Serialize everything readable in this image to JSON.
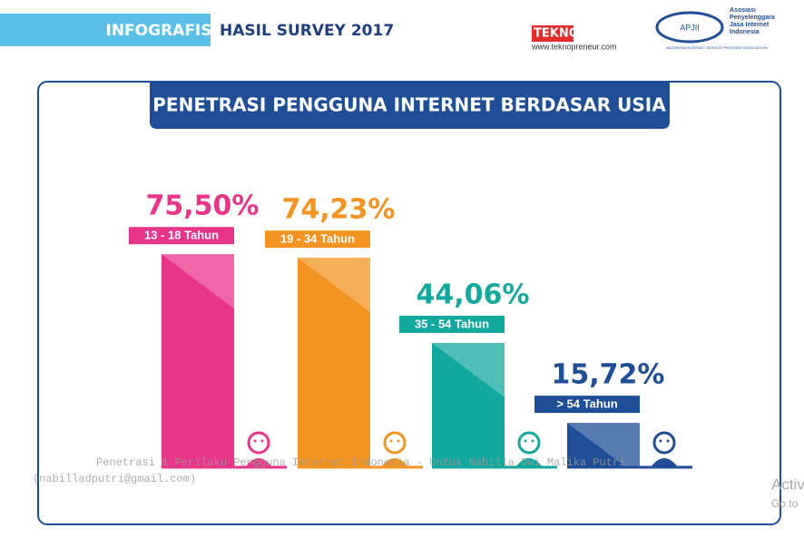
{
  "header": {
    "tag": "INFOGRAFIS",
    "title": "HASIL SURVEY 2017",
    "brand": "TEKNOPRENEUR",
    "brand_url": "www.teknopreneur.com",
    "assoc_logo": "APJII",
    "assoc_name": "Asosiasi Penyelenggara Jasa Internet Indonesia",
    "assoc_sub": "INDONESIA INTERNET SERVICE PROVIDER ASSOCIATION"
  },
  "chart_data": {
    "type": "bar",
    "title": "PENETRASI PENGGUNA INTERNET BERDASAR USIA",
    "categories": [
      "13 - 18 Tahun",
      "19 - 34 Tahun",
      "35 - 54 Tahun",
      "> 54 Tahun"
    ],
    "values": [
      75.5,
      74.23,
      44.06,
      15.72
    ],
    "value_labels": [
      "75,50%",
      "74,23%",
      "44,06%",
      "15,72%"
    ],
    "colors": [
      "#e8358a",
      "#f39321",
      "#13a89e",
      "#1f4e96"
    ]
  },
  "watermark": {
    "line1": "Penetrasi & Perilaku Pengguna Internet Indonesia - Untuk Nabilla Dwi Malika Putri",
    "line2": "(nabilladputri@gmail.com)"
  },
  "os_notice": {
    "line1": "Activ",
    "line2": "Go to"
  }
}
